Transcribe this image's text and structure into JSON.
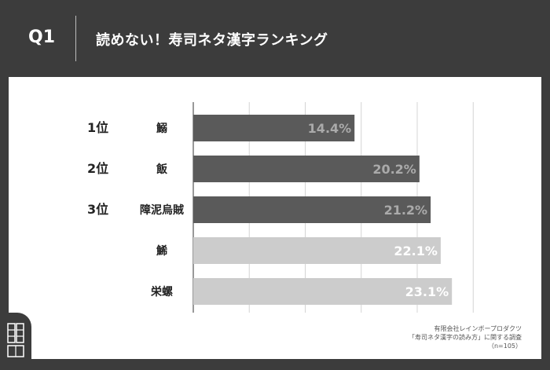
{
  "header": {
    "question": "Q1",
    "title": "読めない！寿司ネタ漢字ランキング"
  },
  "source": {
    "line1": "有限会社レインボープロダクツ",
    "line2": "「寿司ネタ漢字の読み方」に関する調査",
    "line3": "（n=105）"
  },
  "colors": {
    "background": "#3c3c3c",
    "top3_bar": "#5a5a5a",
    "other_bar": "#cccccc",
    "top3_value_text": "#aaaaaa",
    "other_value_text": "#ffffff"
  },
  "chart_data": {
    "type": "bar",
    "orientation": "horizontal",
    "categories": [
      "鰯",
      "飯",
      "障泥烏賊",
      "鯑",
      "栄螺"
    ],
    "ranks": [
      "1位",
      "2位",
      "3位",
      "",
      ""
    ],
    "values": [
      14.4,
      20.2,
      21.2,
      22.1,
      23.1
    ],
    "value_labels": [
      "14.4%",
      "20.2%",
      "21.2%",
      "22.1%",
      "23.1%"
    ],
    "unit": "%",
    "xlim": [
      0,
      25
    ],
    "grid": true,
    "highlight_top": 3
  }
}
